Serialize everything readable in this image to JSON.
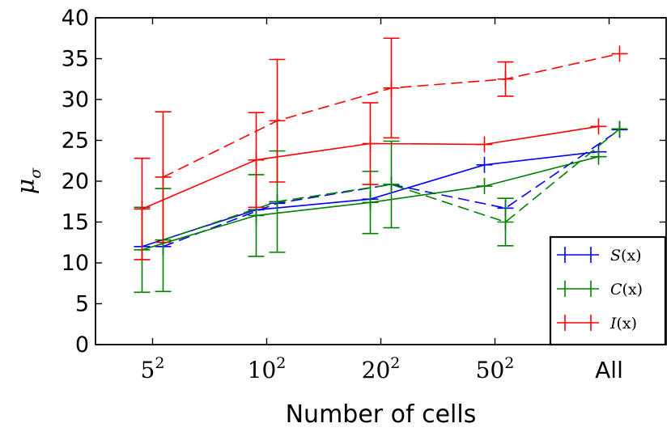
{
  "chart_data": {
    "type": "line",
    "xlabel": "Number of cells",
    "ylabel": "μ",
    "ylabel_subscript": "σ",
    "ylim": [
      0,
      40
    ],
    "yticks": [
      0,
      5,
      10,
      15,
      20,
      25,
      30,
      35,
      40
    ],
    "categories": [
      "5",
      "10",
      "20",
      "50",
      "All"
    ],
    "category_exponent": "2",
    "legend_position": "lower-right",
    "series": [
      {
        "name": "S(x)",
        "label_main": "S",
        "label_arg": "(x)",
        "color": "#0000ff",
        "solid": [
          12.0,
          16.5,
          17.8,
          22.0,
          23.6
        ],
        "dashed": [
          12.0,
          17.3,
          19.6,
          16.7,
          26.3
        ],
        "solid_err": [
          0,
          0,
          0,
          0,
          0
        ],
        "dashed_err": [
          0,
          0,
          0,
          0,
          0
        ]
      },
      {
        "name": "C(x)",
        "label_main": "C",
        "label_arg": "(x)",
        "color": "#008000",
        "solid": [
          11.6,
          15.8,
          17.4,
          19.4,
          23.0
        ],
        "dashed": [
          12.8,
          17.5,
          19.6,
          15.0,
          26.4
        ],
        "solid_err": [
          5.2,
          5.0,
          3.8,
          0,
          0
        ],
        "dashed_err": [
          6.3,
          6.2,
          5.3,
          2.9,
          0
        ]
      },
      {
        "name": "I(x)",
        "label_main": "I",
        "label_arg": "(x)",
        "color": "#ff0000",
        "solid": [
          16.6,
          22.6,
          24.6,
          24.5,
          26.7
        ],
        "dashed": [
          20.5,
          27.4,
          31.4,
          32.5,
          35.6
        ],
        "solid_err": [
          6.2,
          5.8,
          5.0,
          0,
          0
        ],
        "dashed_err": [
          8.0,
          7.5,
          6.1,
          2.1,
          0
        ]
      }
    ]
  }
}
